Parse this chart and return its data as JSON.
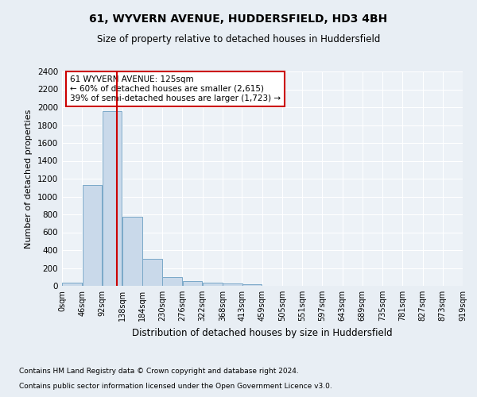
{
  "title1": "61, WYVERN AVENUE, HUDDERSFIELD, HD3 4BH",
  "title2": "Size of property relative to detached houses in Huddersfield",
  "xlabel": "Distribution of detached houses by size in Huddersfield",
  "ylabel": "Number of detached properties",
  "footnote1": "Contains HM Land Registry data © Crown copyright and database right 2024.",
  "footnote2": "Contains public sector information licensed under the Open Government Licence v3.0.",
  "bin_edges": [
    0,
    46,
    92,
    138,
    184,
    230,
    276,
    322,
    368,
    413,
    459,
    505,
    551,
    597,
    643,
    689,
    735,
    781,
    827,
    873,
    919
  ],
  "bar_heights": [
    35,
    1130,
    1960,
    775,
    300,
    100,
    50,
    40,
    25,
    15,
    0,
    0,
    0,
    0,
    0,
    0,
    0,
    0,
    0,
    0
  ],
  "bar_color": "#c9d9ea",
  "bar_edge_color": "#7aa8c8",
  "property_size": 125,
  "annotation_title": "61 WYVERN AVENUE: 125sqm",
  "annotation_line1": "← 60% of detached houses are smaller (2,615)",
  "annotation_line2": "39% of semi-detached houses are larger (1,723) →",
  "vline_color": "#cc0000",
  "annotation_box_color": "#cc0000",
  "ylim": [
    0,
    2400
  ],
  "yticks": [
    0,
    200,
    400,
    600,
    800,
    1000,
    1200,
    1400,
    1600,
    1800,
    2000,
    2200,
    2400
  ],
  "bg_color": "#e8eef4",
  "plot_bg_color": "#edf2f7",
  "grid_color": "#ffffff"
}
